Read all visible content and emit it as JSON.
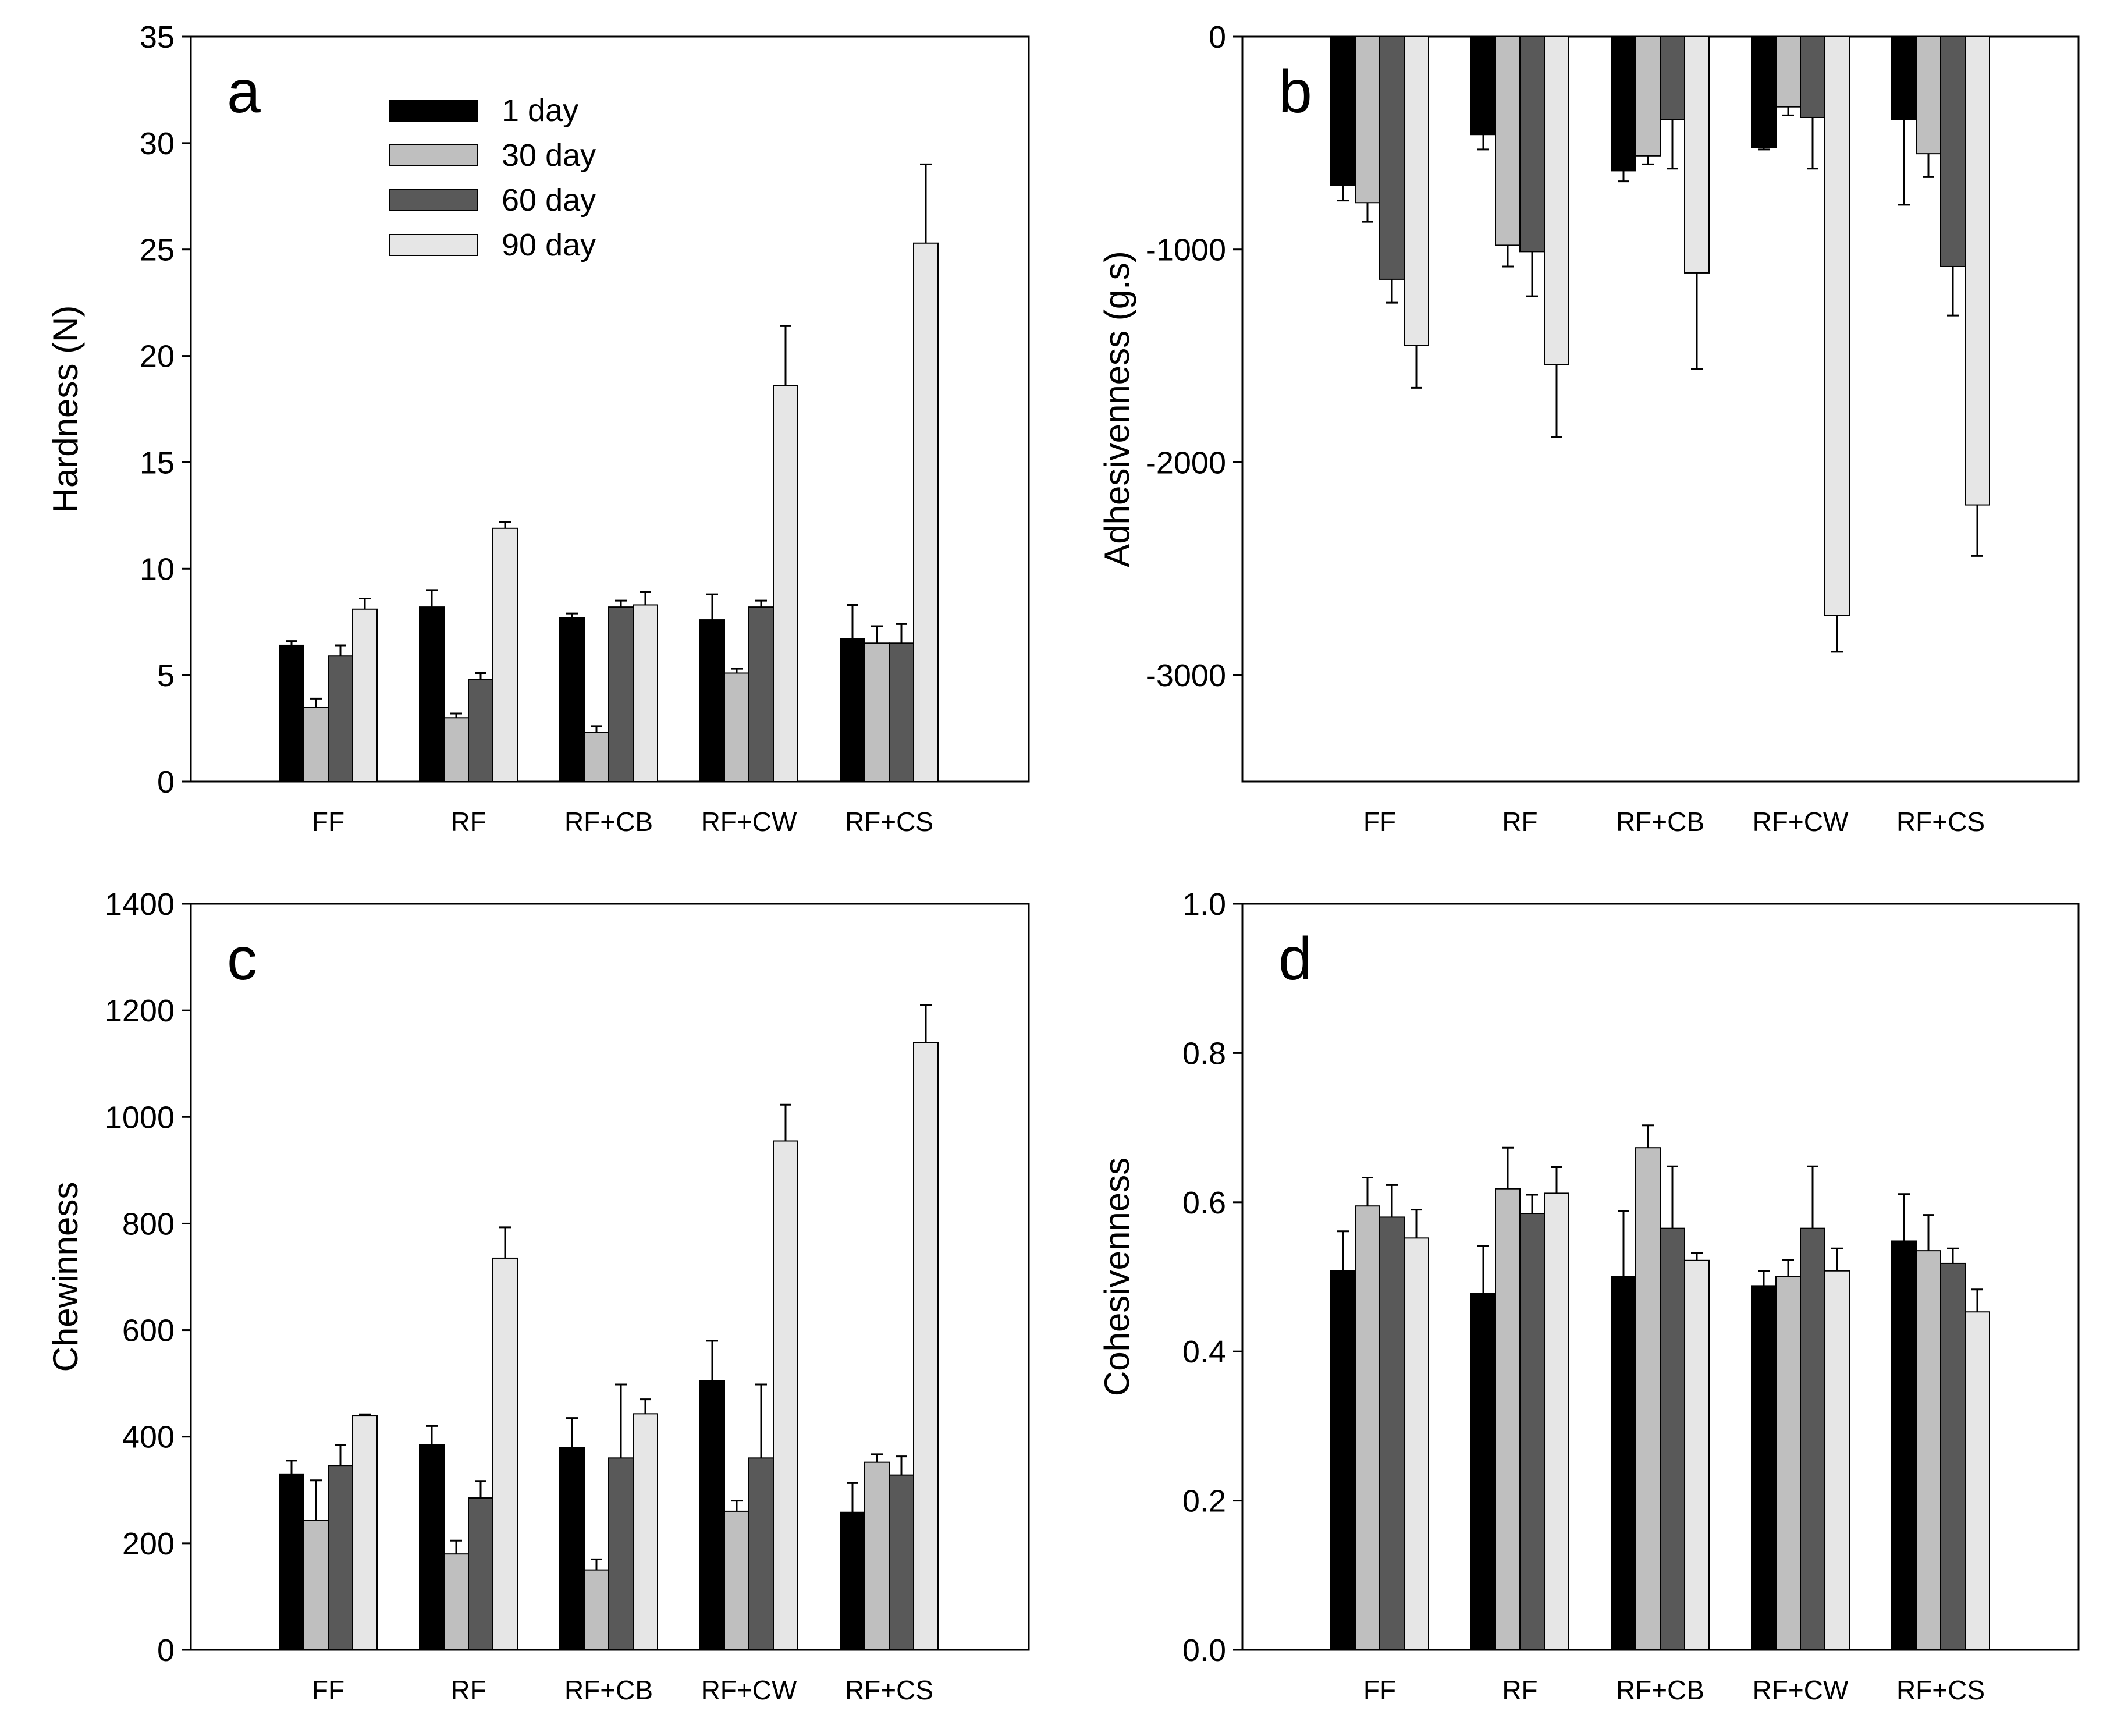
{
  "chart_data": [
    {
      "type": "bar",
      "panel_label": "a",
      "ylabel": "Hardness (N)",
      "xlabel": "",
      "ylim": [
        0,
        35
      ],
      "yticks": [
        0,
        5,
        10,
        15,
        20,
        25,
        30,
        35
      ],
      "categories": [
        "FF",
        "RF",
        "RF+CB",
        "RF+CW",
        "RF+CS"
      ],
      "legend_position": "top-left",
      "series": [
        {
          "name": "1 day",
          "color": "#000000",
          "values": [
            6.4,
            8.2,
            7.7,
            7.6,
            6.7
          ],
          "errors": [
            0.2,
            0.8,
            0.2,
            1.2,
            1.6
          ]
        },
        {
          "name": "30 day",
          "color": "#bfbfbf",
          "values": [
            3.5,
            3.0,
            2.3,
            5.1,
            6.5
          ],
          "errors": [
            0.4,
            0.2,
            0.3,
            0.2,
            0.8
          ]
        },
        {
          "name": "60 day",
          "color": "#595959",
          "values": [
            5.9,
            4.8,
            8.2,
            8.2,
            6.5
          ],
          "errors": [
            0.5,
            0.3,
            0.3,
            0.3,
            0.9
          ]
        },
        {
          "name": "90 day",
          "color": "#e6e6e6",
          "values": [
            8.1,
            11.9,
            8.3,
            18.6,
            25.3
          ],
          "errors": [
            0.5,
            0.3,
            0.6,
            2.8,
            3.7
          ]
        }
      ]
    },
    {
      "type": "bar",
      "panel_label": "b",
      "ylabel": "Adhesivenness (g.s)",
      "xlabel": "",
      "ylim": [
        -3500,
        0
      ],
      "yticks": [
        -3000,
        -2000,
        -1000,
        0
      ],
      "categories": [
        "FF",
        "RF",
        "RF+CB",
        "RF+CW",
        "RF+CS"
      ],
      "series": [
        {
          "name": "1 day",
          "color": "#000000",
          "values": [
            -700,
            -460,
            -630,
            -520,
            -390
          ],
          "errors": [
            70,
            70,
            50,
            10,
            400
          ]
        },
        {
          "name": "30 day",
          "color": "#bfbfbf",
          "values": [
            -780,
            -980,
            -560,
            -330,
            -550
          ],
          "errors": [
            90,
            100,
            40,
            40,
            110
          ]
        },
        {
          "name": "60 day",
          "color": "#595959",
          "values": [
            -1140,
            -1010,
            -390,
            -380,
            -1080
          ],
          "errors": [
            110,
            210,
            230,
            240,
            230
          ]
        },
        {
          "name": "90 day",
          "color": "#e6e6e6",
          "values": [
            -1450,
            -1540,
            -1110,
            -2720,
            -2200
          ],
          "errors": [
            200,
            340,
            450,
            170,
            240
          ]
        }
      ]
    },
    {
      "type": "bar",
      "panel_label": "c",
      "ylabel": "Chewinness",
      "xlabel": "",
      "ylim": [
        0,
        1400
      ],
      "yticks": [
        0,
        200,
        400,
        600,
        800,
        1000,
        1200,
        1400
      ],
      "categories": [
        "FF",
        "RF",
        "RF+CB",
        "RF+CW",
        "RF+CS"
      ],
      "series": [
        {
          "name": "1 day",
          "color": "#000000",
          "values": [
            330,
            385,
            380,
            505,
            258
          ],
          "errors": [
            25,
            35,
            55,
            75,
            55
          ]
        },
        {
          "name": "30 day",
          "color": "#bfbfbf",
          "values": [
            243,
            180,
            150,
            260,
            352
          ],
          "errors": [
            75,
            25,
            20,
            20,
            15
          ]
        },
        {
          "name": "60 day",
          "color": "#595959",
          "values": [
            346,
            285,
            360,
            360,
            328
          ],
          "errors": [
            38,
            32,
            138,
            138,
            35
          ]
        },
        {
          "name": "90 day",
          "color": "#e6e6e6",
          "values": [
            440,
            735,
            443,
            955,
            1140
          ],
          "errors": [
            2,
            58,
            27,
            68,
            70
          ]
        }
      ]
    },
    {
      "type": "bar",
      "panel_label": "d",
      "ylabel": "Cohesivenness",
      "xlabel": "",
      "ylim": [
        0,
        1.0
      ],
      "yticks": [
        0.0,
        0.2,
        0.4,
        0.6,
        0.8,
        1.0
      ],
      "yticklabels": [
        "0.0",
        "0.2",
        "0.4",
        "0.6",
        "0.8",
        "1.0"
      ],
      "categories": [
        "FF",
        "RF",
        "RF+CB",
        "RF+CW",
        "RF+CS"
      ],
      "series": [
        {
          "name": "1 day",
          "color": "#000000",
          "values": [
            0.508,
            0.478,
            0.5,
            0.488,
            0.548
          ],
          "errors": [
            0.053,
            0.063,
            0.088,
            0.02,
            0.063
          ]
        },
        {
          "name": "30 day",
          "color": "#bfbfbf",
          "values": [
            0.595,
            0.618,
            0.673,
            0.5,
            0.535
          ],
          "errors": [
            0.038,
            0.055,
            0.03,
            0.023,
            0.048
          ]
        },
        {
          "name": "60 day",
          "color": "#595959",
          "values": [
            0.58,
            0.585,
            0.565,
            0.565,
            0.518
          ],
          "errors": [
            0.043,
            0.025,
            0.083,
            0.083,
            0.02
          ]
        },
        {
          "name": "90 day",
          "color": "#e6e6e6",
          "values": [
            0.552,
            0.612,
            0.522,
            0.508,
            0.453
          ],
          "errors": [
            0.038,
            0.035,
            0.01,
            0.03,
            0.03
          ]
        }
      ]
    }
  ]
}
